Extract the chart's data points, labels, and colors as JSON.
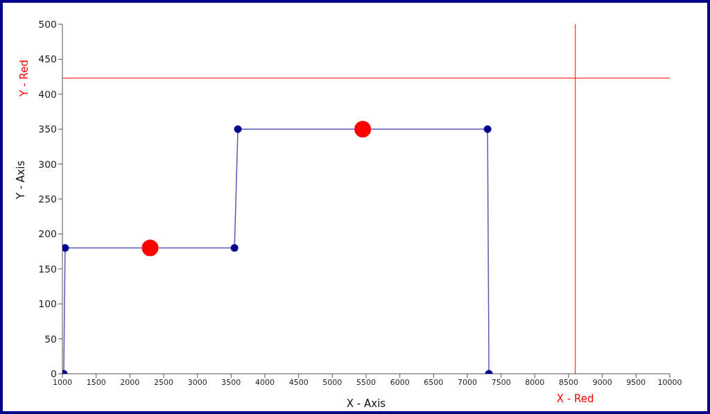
{
  "chart_data": {
    "type": "line",
    "xlabel": "X - Axis",
    "ylabel": "Y - Axis",
    "xlim": [
      1000,
      10000
    ],
    "xticks": [
      1000,
      1500,
      2000,
      2500,
      3000,
      3500,
      4000,
      4500,
      5000,
      5500,
      6000,
      6500,
      7000,
      7500,
      8000,
      8500,
      9000,
      9500,
      10000
    ],
    "ylim": [
      0,
      500
    ],
    "yticks": [
      0,
      50,
      100,
      150,
      200,
      250,
      300,
      350,
      400,
      450,
      500
    ],
    "grid": false,
    "series": [
      {
        "type": "line",
        "color": "#00008b",
        "marker": "circle",
        "line_style": "solid",
        "x": [
          1020,
          1040,
          3550,
          3600,
          7300,
          7320
        ],
        "values": [
          0,
          180,
          180,
          350,
          350,
          0
        ]
      },
      {
        "type": "scatter",
        "color": "#ff0000",
        "marker": "circle",
        "x": [
          2300,
          5450
        ],
        "values": [
          180,
          350
        ]
      }
    ],
    "ref_lines": [
      {
        "axis": "x",
        "value": 8600,
        "label": "X - Red",
        "color": "#ff0000"
      },
      {
        "axis": "y",
        "value": 423,
        "label": "Y - Red",
        "color": "#ff0000"
      }
    ]
  }
}
